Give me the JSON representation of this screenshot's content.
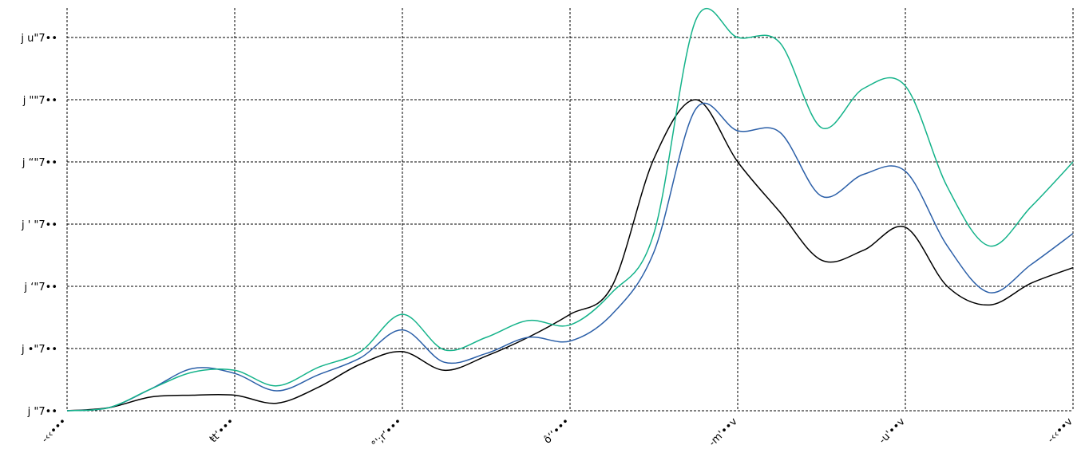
{
  "chart_data": {
    "type": "line",
    "title": "",
    "xlabel": "",
    "ylabel": "",
    "x": [
      0,
      0.5,
      1,
      1.5,
      2,
      2.5,
      3,
      3.5,
      4,
      4.5,
      5,
      5.5,
      6,
      6.5,
      7,
      7.5,
      8,
      8.5,
      9,
      9.5,
      10,
      10.5,
      11,
      11.5,
      12
    ],
    "xlim": [
      0,
      12
    ],
    "ylim": [
      0,
      6.3
    ],
    "x_tick_labels": [
      "-‹‹•••",
      "ŧt‘•••",
      "°';r‘•••",
      "ô‘‘•••",
      "-m'••v",
      "-u'••v",
      "-‹‹••v"
    ],
    "y_tick_labels": [
      "j \"7••",
      "j •\"7••",
      "j ‘\"7••",
      "j ' \"7••",
      "j “\"7••",
      "j \"\"7••",
      "j u\"7••"
    ],
    "grid": true,
    "legend": "none",
    "series": [
      {
        "color": "#000000",
        "values": [
          0,
          0.05,
          0.22,
          0.25,
          0.25,
          0.12,
          0.38,
          0.75,
          0.95,
          0.65,
          0.88,
          1.18,
          1.55,
          2.0,
          4.05,
          5.0,
          4.0,
          3.2,
          2.42,
          2.58,
          2.95,
          2.0,
          1.7,
          2.05,
          2.3
        ]
      },
      {
        "color": "#2b5fa8",
        "values": [
          0,
          0.05,
          0.35,
          0.68,
          0.6,
          0.32,
          0.58,
          0.85,
          1.3,
          0.78,
          0.92,
          1.18,
          1.12,
          1.55,
          2.55,
          4.85,
          4.5,
          4.48,
          3.45,
          3.8,
          3.85,
          2.65,
          1.9,
          2.35,
          2.85
        ]
      },
      {
        "color": "#14b38a",
        "values": [
          0,
          0.05,
          0.35,
          0.62,
          0.65,
          0.4,
          0.7,
          0.95,
          1.55,
          0.98,
          1.18,
          1.45,
          1.38,
          1.9,
          2.85,
          6.28,
          6.0,
          5.92,
          4.55,
          5.18,
          5.22,
          3.6,
          2.65,
          3.28,
          4.0
        ]
      }
    ]
  }
}
